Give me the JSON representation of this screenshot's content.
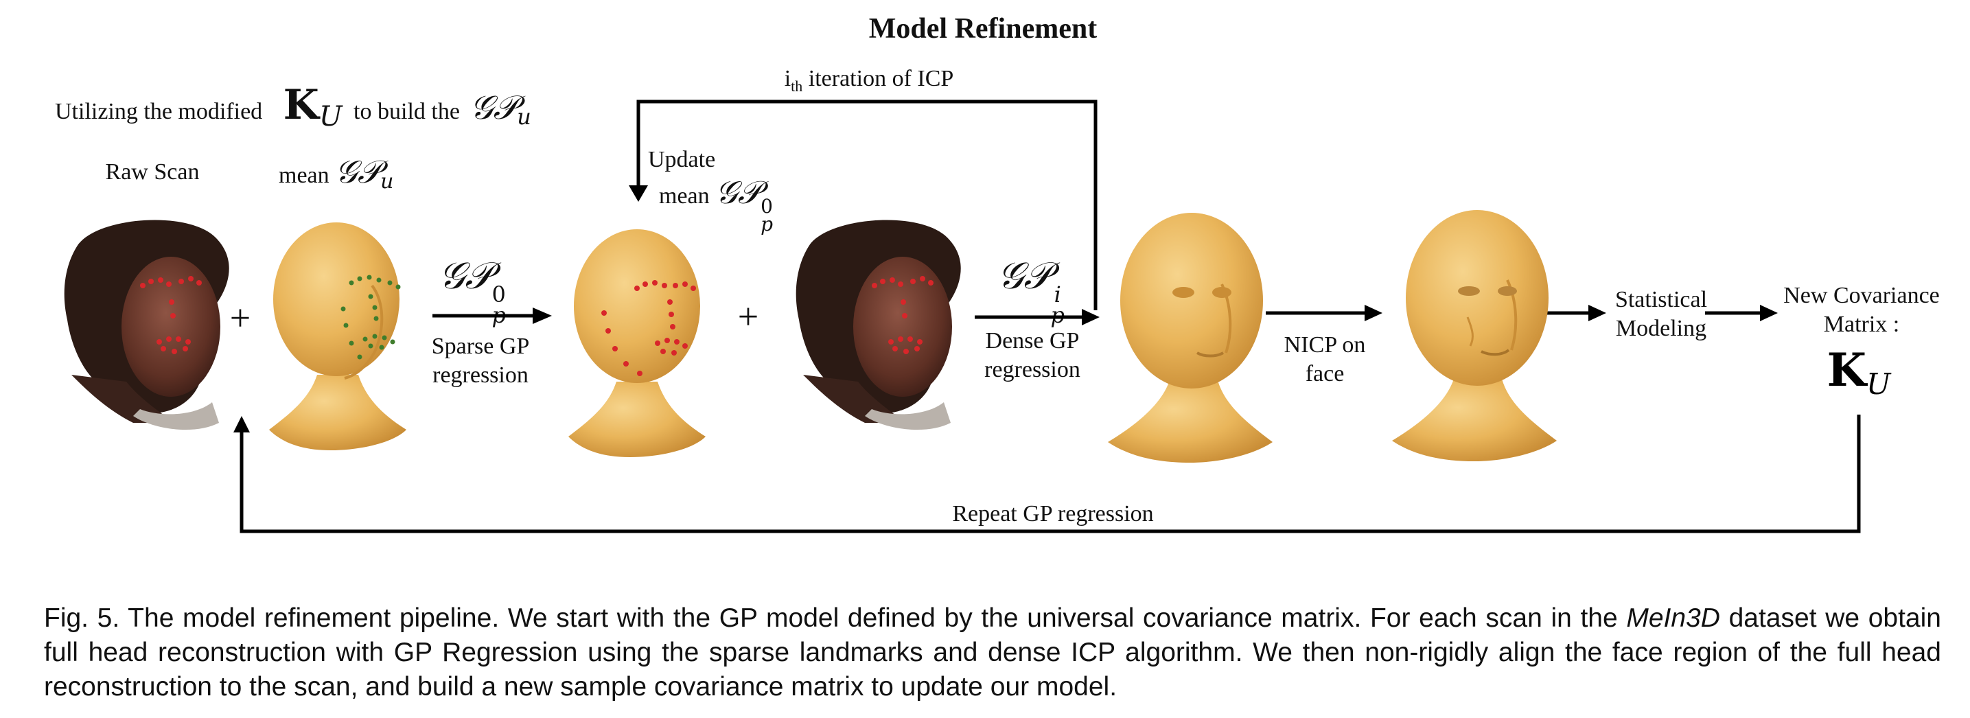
{
  "figure": {
    "title": "Model Refinement",
    "intro_text_before": "Utilizing the modified",
    "intro_math_k": "K",
    "intro_math_k_sub": "U",
    "intro_text_mid": "to build the",
    "intro_math_gp": "𝒢𝒫",
    "intro_math_gp_sub": "u",
    "raw_scan_label": "Raw Scan",
    "mean_gpu_prefix": "mean",
    "mean_gpu_math": "𝒢𝒫",
    "mean_gpu_sub": "u",
    "icp_iteration_main": "i",
    "icp_iteration_sub": "th",
    "icp_iteration_rest": " iteration of ICP",
    "update_line1": "Update",
    "update_line2_prefix": "mean",
    "update_math": "𝒢𝒫",
    "update_sub": "p",
    "update_sup": "0",
    "sparse_math": "𝒢𝒫",
    "sparse_sub": "p",
    "sparse_sup": "0",
    "sparse_line1": "Sparse GP",
    "sparse_line2": "regression",
    "dense_math": "𝒢𝒫",
    "dense_sub": "p",
    "dense_sup": "i",
    "dense_line1": "Dense GP",
    "dense_line2": "regression",
    "nicp_line1": "NICP on",
    "nicp_line2": "face",
    "stat_line1": "Statistical",
    "stat_line2": "Modeling",
    "newcov_line1": "New Covariance",
    "newcov_line2": "Matrix :",
    "newcov_math": "K",
    "newcov_sub": "U",
    "repeat_label": "Repeat GP regression",
    "plus_symbol": "+"
  },
  "caption": {
    "part1": "Fig. 5. The model refinement pipeline. We start with the GP model defined by the universal covariance matrix. For each scan in the ",
    "dataset": "MeIn3D",
    "part2": " dataset we obtain full head reconstruction with GP Regression using the sparse landmarks and dense ICP algorithm. We then non-rigidly align the face region of the full head reconstruction to the scan, and build a new sample covariance matrix to update our model."
  },
  "colors": {
    "arrow": "#000000",
    "head_fill": "#e9b55a",
    "head_shadow": "#c98d36",
    "scan_skin": "#6b3a2c",
    "scan_hair": "#2b1a14",
    "landmark_red": "#d8262a",
    "landmark_green": "#3f7d2c"
  }
}
